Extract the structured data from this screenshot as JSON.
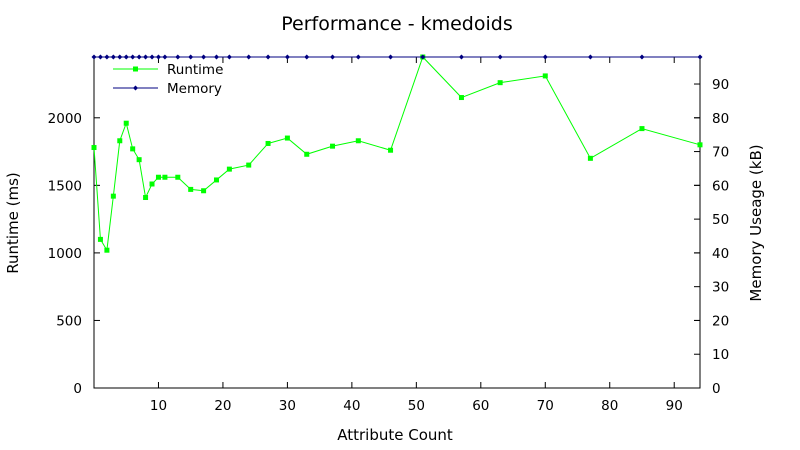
{
  "chart_data": {
    "type": "line",
    "title": "Performance - kmedoids",
    "xlabel": "Attribute Count",
    "ylabel": "Runtime (ms)",
    "y2label": "Memory Useage (kB)",
    "xlim": [
      0,
      94
    ],
    "ylim": [
      0,
      2450
    ],
    "y2lim": [
      0,
      98
    ],
    "xticks": [
      10,
      20,
      30,
      40,
      50,
      60,
      70,
      80,
      90
    ],
    "yticks": [
      0,
      500,
      1000,
      1500,
      2000
    ],
    "y2ticks": [
      0,
      10,
      20,
      30,
      40,
      50,
      60,
      70,
      80,
      90
    ],
    "legend_position": "top-left",
    "grid": false,
    "series": [
      {
        "name": "Runtime",
        "axis": "left",
        "color": "#00ff00",
        "marker": "square",
        "x": [
          0,
          1,
          2,
          3,
          4,
          5,
          6,
          7,
          8,
          9,
          10,
          11,
          13,
          15,
          17,
          19,
          21,
          24,
          27,
          30,
          33,
          37,
          41,
          46,
          51,
          57,
          63,
          70,
          77,
          85,
          94
        ],
        "values": [
          1780,
          1100,
          1020,
          1420,
          1830,
          1960,
          1770,
          1690,
          1410,
          1510,
          1560,
          1560,
          1560,
          1470,
          1460,
          1540,
          1620,
          1650,
          1810,
          1850,
          1730,
          1790,
          1830,
          1760,
          2450,
          2150,
          2260,
          2310,
          1700,
          1920,
          1800
        ]
      },
      {
        "name": "Memory",
        "axis": "right",
        "color": "#000080",
        "marker": "diamond",
        "x": [
          0,
          1,
          2,
          3,
          4,
          5,
          6,
          7,
          8,
          9,
          10,
          11,
          13,
          15,
          17,
          19,
          21,
          24,
          27,
          30,
          33,
          37,
          41,
          46,
          51,
          57,
          63,
          70,
          77,
          85,
          94
        ],
        "values": [
          98,
          98,
          98,
          98,
          98,
          98,
          98,
          98,
          98,
          98,
          98,
          98,
          98,
          98,
          98,
          98,
          98,
          98,
          98,
          98,
          98,
          98,
          98,
          98,
          98,
          98,
          98,
          98,
          98,
          98,
          98
        ]
      }
    ]
  }
}
